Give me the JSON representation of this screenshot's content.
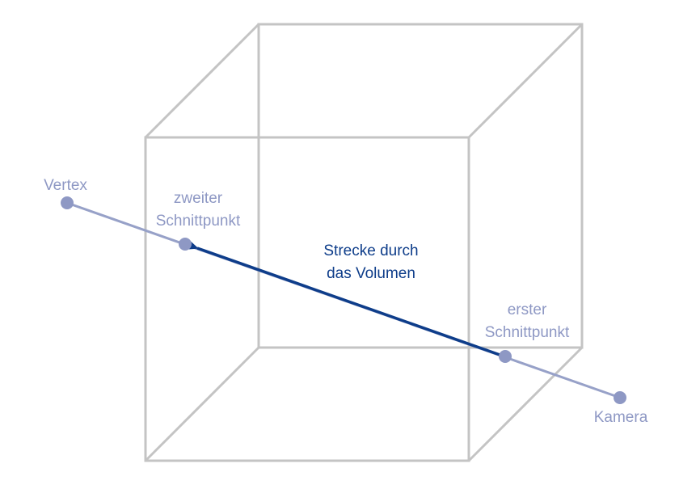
{
  "labels": {
    "vertex": "Vertex",
    "second_intersection_line1": "zweiter",
    "second_intersection_line2": "Schnittpunkt",
    "segment_line1": "Strecke durch",
    "segment_line2": "das Volumen",
    "first_intersection_line1": "erster",
    "first_intersection_line2": "Schnittpunkt",
    "camera": "Kamera"
  },
  "colors": {
    "cube_edge": "#c4c4c4",
    "ray": "#97a1c8",
    "point": "#8e98c4",
    "label_light": "#8e98c4",
    "segment": "#0e3d8a"
  }
}
